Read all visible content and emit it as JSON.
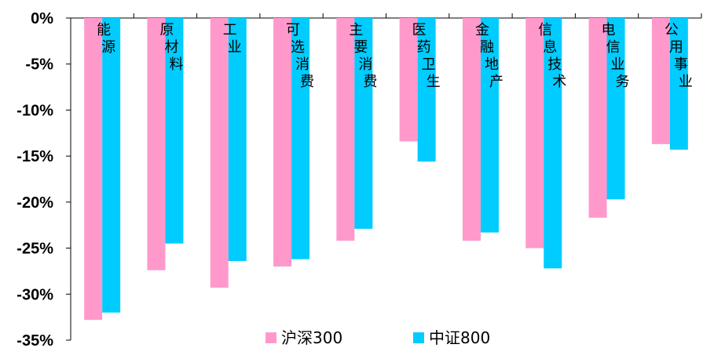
{
  "chart_data": {
    "type": "bar",
    "categories": [
      "能源",
      "原材料",
      "工业",
      "可选消费",
      "主要消费",
      "医药卫生",
      "金融地产",
      "信息技术",
      "电信业务",
      "公用事业"
    ],
    "series": [
      {
        "name": "沪深300",
        "color": "#FF99CC",
        "values": [
          -32.8,
          -27.4,
          -29.3,
          -27.0,
          -24.2,
          -13.4,
          -24.2,
          -25.0,
          -21.7,
          -13.7
        ]
      },
      {
        "name": "中证800",
        "color": "#00CCFF",
        "values": [
          -32.0,
          -24.5,
          -26.4,
          -26.2,
          -22.9,
          -15.6,
          -23.3,
          -27.2,
          -19.7,
          -14.3
        ]
      }
    ],
    "yticks": [
      "0%",
      "-5%",
      "-10%",
      "-15%",
      "-20%",
      "-25%",
      "-30%",
      "-35%"
    ],
    "ytick_values": [
      0,
      -5,
      -10,
      -15,
      -20,
      -25,
      -30,
      -35
    ],
    "ylim": [
      -35,
      0
    ],
    "category_labels_position": "top, inside plot, vertical",
    "legend_position": "bottom-center",
    "grid": false
  }
}
